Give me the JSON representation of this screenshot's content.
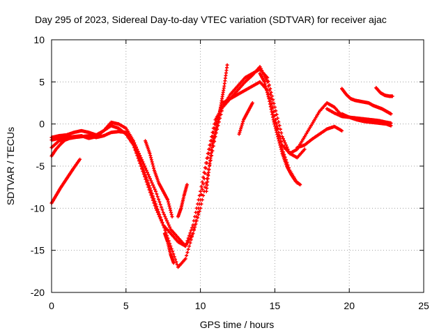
{
  "chart_data": {
    "type": "scatter",
    "title": "Day 295 of 2023, Sidereal Day-to-day VTEC variation (SDTVAR) for receiver ajac",
    "xlabel": "GPS time / hours",
    "ylabel": "SDTVAR / TECUs",
    "xlim": [
      0,
      25
    ],
    "ylim": [
      -20,
      10
    ],
    "x_ticks": [
      0,
      5,
      10,
      15,
      20,
      25
    ],
    "y_ticks": [
      -20,
      -15,
      -10,
      -5,
      0,
      5,
      10
    ],
    "x_tick_labels": [
      "0",
      "5",
      "10",
      "15",
      "20",
      "25"
    ],
    "y_tick_labels": [
      "-20",
      "-15",
      "-10",
      "-5",
      "0",
      "5",
      "10"
    ],
    "grid": true,
    "marker": "plus",
    "color": "#ff0000",
    "series": [
      {
        "x": [
          0,
          0.5,
          1,
          1.5,
          2,
          2.5,
          3,
          3.5,
          4,
          4.5,
          5,
          5.5,
          6,
          6.5,
          7,
          7.5,
          8,
          8.5,
          9,
          9.5,
          10,
          10.5,
          11,
          11.5,
          12,
          12.5,
          13,
          13.5,
          14,
          14.5,
          15,
          15.5,
          16,
          16.5,
          17,
          17.5,
          18,
          18.5,
          19,
          19.5
        ],
        "y": [
          -1.6,
          -1.4,
          -1.3,
          -1.0,
          -0.8,
          -1.0,
          -1.3,
          -0.8,
          -0.2,
          -0.5,
          -1.2,
          -2.5,
          -4.5,
          -7.0,
          -9.5,
          -12.0,
          -14.5,
          -17.0,
          -16.0,
          -13.0,
          -9.0,
          -4.0,
          0.0,
          2.5,
          3.0,
          3.5,
          4.0,
          4.5,
          5.0,
          4.0,
          0.5,
          -2.5,
          -3.5,
          -3.0,
          -1.5,
          0.0,
          1.5,
          2.5,
          2.0,
          1.0
        ]
      },
      {
        "x": [
          0,
          0.5,
          1,
          1.5,
          2,
          2.5,
          3,
          3.5,
          4,
          4.5,
          5,
          5.5,
          6,
          6.5,
          7,
          7.5,
          8,
          8.5,
          9,
          9.5,
          10,
          10.5,
          11,
          11.5,
          12,
          12.5,
          13,
          13.5,
          14,
          14.5,
          15,
          15.5,
          16,
          16.5,
          17
        ],
        "y": [
          -1.9,
          -1.7,
          -1.6,
          -1.5,
          -1.4,
          -1.7,
          -1.5,
          -0.8,
          0.2,
          0.0,
          -0.5,
          -2.0,
          -4.0,
          -6.0,
          -8.0,
          -10.5,
          -12.5,
          -13.5,
          -14.5,
          -13.0,
          -10.0,
          -6.0,
          -1.5,
          2.0,
          3.5,
          4.5,
          5.5,
          6.0,
          6.5,
          5.5,
          2.0,
          -1.5,
          -3.5,
          -4.0,
          -3.0
        ]
      },
      {
        "x": [
          0,
          0.5,
          1,
          1.5,
          2,
          2.5,
          3,
          3.5,
          4,
          4.5,
          5,
          5.5,
          6,
          6.5,
          7,
          7.5,
          8,
          8.5,
          9,
          9.5,
          10,
          10.5,
          11,
          11.5,
          12,
          12.5,
          13,
          13.5,
          14,
          14.5,
          15,
          15.5,
          16,
          16.5
        ],
        "y": [
          -2.8,
          -2.0,
          -1.7,
          -1.6,
          -1.5,
          -1.4,
          -1.6,
          -1.4,
          -1.0,
          -0.9,
          -1.0,
          -2.5,
          -5.0,
          -7.5,
          -10.0,
          -12.0,
          -13.0,
          -14.0,
          -14.5,
          -12.0,
          -8.0,
          -3.5,
          0.5,
          2.0,
          3.0,
          4.0,
          5.0,
          5.8,
          6.8,
          5.0,
          1.0,
          -3.0,
          -5.5,
          -7.0
        ]
      },
      {
        "x": [
          0,
          0.3,
          0.6,
          0.9,
          1.2,
          1.5,
          1.8
        ],
        "y": [
          -3.8,
          -3.0,
          -2.4,
          -1.9,
          -1.7,
          -1.6,
          -1.5
        ]
      },
      {
        "x": [
          0,
          0.3,
          0.6,
          0.9,
          1.2,
          1.5,
          1.9
        ],
        "y": [
          -9.4,
          -8.5,
          -7.6,
          -6.8,
          -6.0,
          -5.2,
          -4.2
        ]
      },
      {
        "x": [
          6.3,
          6.6,
          6.9,
          7.2,
          7.5,
          7.8,
          8.1
        ],
        "y": [
          -2.0,
          -3.5,
          -5.5,
          -7.0,
          -8.0,
          -9.0,
          -11.0
        ]
      },
      {
        "x": [
          7.6,
          7.8,
          8.0,
          8.2
        ],
        "y": [
          -13.0,
          -14.0,
          -15.5,
          -16.5
        ]
      },
      {
        "x": [
          8.5,
          8.7,
          8.9,
          9.1
        ],
        "y": [
          -11.0,
          -10.0,
          -8.5,
          -7.2
        ]
      },
      {
        "x": [
          10.4,
          10.6,
          10.8,
          11.0,
          11.2,
          11.4,
          11.6,
          11.8
        ],
        "y": [
          -8.0,
          -5.0,
          -2.5,
          -1.0,
          0.5,
          2.5,
          4.5,
          7.0
        ]
      },
      {
        "x": [
          12.6,
          12.9,
          13.2,
          13.5
        ],
        "y": [
          -1.2,
          0.5,
          1.5,
          2.5
        ]
      },
      {
        "x": [
          14.0,
          14.3,
          14.6,
          14.9,
          15.2,
          15.5,
          15.8,
          16.1,
          16.4,
          16.7
        ],
        "y": [
          6.0,
          5.0,
          3.0,
          0.5,
          -1.5,
          -3.5,
          -5.0,
          -6.0,
          -6.8,
          -7.2
        ]
      },
      {
        "x": [
          16.5,
          17.0,
          17.5,
          18.0,
          18.5,
          19.0,
          19.5
        ],
        "y": [
          -2.8,
          -2.5,
          -1.8,
          -1.2,
          -0.6,
          -0.3,
          -0.8
        ]
      },
      {
        "x": [
          19.5,
          19.8,
          20.1,
          20.4,
          20.7,
          21.0,
          21.3,
          21.6,
          21.9,
          22.2,
          22.5,
          22.8
        ],
        "y": [
          4.2,
          3.5,
          3.0,
          2.8,
          2.7,
          2.6,
          2.5,
          2.2,
          2.0,
          1.8,
          1.5,
          1.2
        ]
      },
      {
        "x": [
          18.5,
          19.0,
          19.5,
          20.0,
          20.5,
          21.0,
          21.5,
          22.0,
          22.5,
          22.8
        ],
        "y": [
          1.8,
          1.3,
          0.9,
          0.8,
          0.7,
          0.6,
          0.5,
          0.4,
          0.2,
          0.1
        ]
      },
      {
        "x": [
          19.5,
          20.0,
          20.5,
          21.0,
          21.5,
          22.0,
          22.5,
          22.8
        ],
        "y": [
          1.2,
          0.8,
          0.5,
          0.3,
          0.2,
          0.1,
          0.0,
          -0.2
        ]
      },
      {
        "x": [
          21.8,
          22.1,
          22.4,
          22.7,
          22.9
        ],
        "y": [
          4.3,
          3.7,
          3.4,
          3.3,
          3.3
        ]
      }
    ]
  }
}
